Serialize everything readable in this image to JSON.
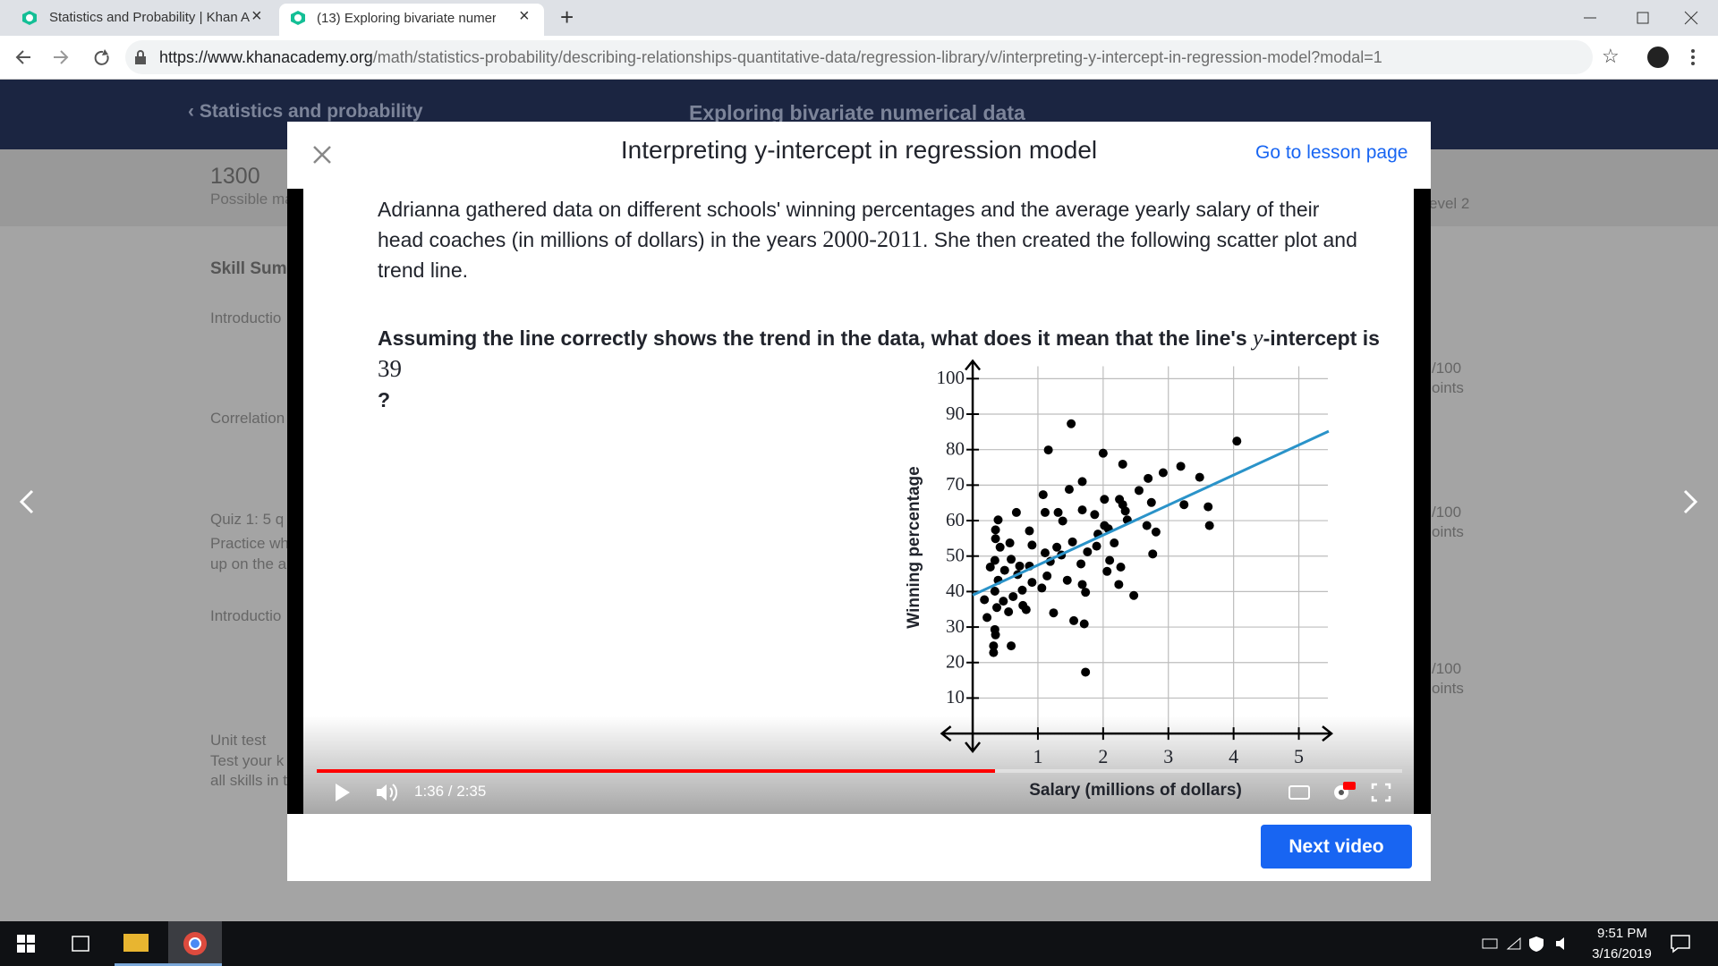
{
  "browser": {
    "tabs": [
      "Statistics and Probability | Khan A",
      "(13) Exploring bivariate numerica"
    ],
    "url_host": "https://www.khanacademy.org",
    "url_path": "/math/statistics-probability/describing-relationships-quantitative-data/regression-library/v/interpreting-y-intercept-in-regression-model?modal=1"
  },
  "page": {
    "breadcrumb": "Statistics and probability",
    "unit_title": "Exploring bivariate numerical data",
    "points": "1300",
    "points_label": "Possible ma",
    "sidebar": [
      "Skill Summ",
      "Introductio",
      "Correlation",
      "Quiz 1: 5 q",
      "Practice wh",
      "up on the a",
      "Introductio",
      "Unit test",
      "Test your k",
      "all skills in t"
    ],
    "right_panel": [
      "evel 2",
      "/100",
      "oints",
      "/100",
      "oints",
      "/100",
      "oints"
    ]
  },
  "modal": {
    "title": "Interpreting y-intercept in regression model",
    "lesson_link": "Go to lesson page",
    "next_button": "Next video"
  },
  "lesson": {
    "paragraph": [
      "Adrianna gathered data on different schools' winning percentages and the average yearly salary of their head coaches (in millions of dollars) in the years ",
      "2000-2011",
      ". She then created the following scatter plot and trend line."
    ],
    "question": [
      "Assuming the line correctly shows the trend in the data, what does it mean that the line's ",
      "y",
      "-intercept is ",
      "?"
    ]
  },
  "video": {
    "time": "1:36 / 2:35"
  },
  "taskbar": {
    "time": "9:51 PM",
    "date": "3/16/2019"
  },
  "chart_data": {
    "type": "scatter",
    "x_label": "Salary (millions of dollars)",
    "y_label": "Winning percentage",
    "color": "#000000",
    "line_color": "#2a93c9",
    "grid": true,
    "xlim": [
      -0.5,
      5.5
    ],
    "ylim": [
      -3,
      105
    ],
    "xticks": [
      1,
      2,
      3,
      4,
      5
    ],
    "yticks": [
      10,
      20,
      30,
      40,
      50,
      60,
      70,
      80,
      90,
      100
    ],
    "trend_line": {
      "intercept": 39,
      "slope": 8.46
    },
    "x": [
      1.51,
      1.16,
      2.0,
      4.05,
      2.3,
      3.19,
      2.92,
      3.48,
      2.69,
      1.68,
      2.55,
      1.48,
      1.08,
      2.25,
      2.02,
      2.74,
      3.24,
      3.61,
      2.3,
      2.34,
      1.11,
      1.31,
      1.68,
      0.67,
      0.39,
      1.87,
      1.38,
      2.02,
      2.37,
      2.67,
      3.63,
      0.87,
      2.08,
      0.35,
      2.81,
      1.92,
      0.35,
      2.17,
      0.57,
      1.53,
      0.91,
      1.29,
      1.9,
      0.42,
      1.11,
      1.36,
      1.76,
      2.76,
      0.59,
      0.34,
      1.19,
      2.1,
      0.87,
      0.72,
      1.66,
      0.27,
      0.49,
      2.27,
      2.06,
      0.69,
      1.14,
      0.39,
      1.45,
      2.24,
      0.91,
      1.68,
      1.06,
      0.34,
      0.76,
      1.73,
      2.47,
      0.62,
      0.18,
      0.47,
      0.77,
      0.37,
      0.82,
      0.55,
      1.24,
      0.22,
      1.55,
      1.71,
      0.34,
      0.35,
      0.59,
      0.32,
      0.32,
      1.73
    ],
    "values": [
      87.3,
      79.9,
      79.0,
      82.4,
      75.9,
      75.3,
      73.5,
      72.2,
      71.9,
      71.0,
      68.5,
      68.8,
      67.3,
      66.0,
      66.0,
      65.1,
      64.5,
      63.9,
      64.5,
      62.7,
      62.3,
      62.3,
      63.0,
      62.3,
      60.2,
      61.7,
      59.9,
      58.6,
      60.2,
      58.6,
      58.6,
      57.1,
      57.7,
      57.4,
      56.8,
      56.2,
      54.9,
      53.7,
      53.7,
      54.0,
      53.1,
      52.5,
      52.8,
      52.5,
      50.9,
      50.3,
      51.2,
      50.6,
      49.1,
      48.8,
      48.5,
      48.8,
      47.2,
      47.2,
      47.8,
      46.9,
      46.0,
      46.9,
      45.7,
      44.8,
      44.4,
      43.2,
      43.2,
      42.0,
      42.6,
      42.0,
      41.0,
      40.1,
      40.4,
      39.8,
      38.9,
      38.6,
      37.7,
      37.3,
      36.1,
      35.5,
      34.9,
      34.3,
      34.0,
      32.7,
      31.8,
      30.9,
      29.3,
      27.8,
      24.7,
      24.7,
      22.8,
      17.3
    ]
  }
}
